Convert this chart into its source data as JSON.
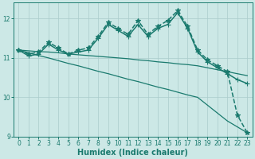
{
  "background_color": "#cce8e6",
  "grid_color": "#aacccc",
  "line_color": "#1a7a6e",
  "xlabel": "Humidex (Indice chaleur)",
  "xlim": [
    -0.5,
    23.5
  ],
  "ylim": [
    9.0,
    12.4
  ],
  "yticks": [
    9,
    10,
    11,
    12
  ],
  "xticks": [
    0,
    1,
    2,
    3,
    4,
    5,
    6,
    7,
    8,
    9,
    10,
    11,
    12,
    13,
    14,
    15,
    16,
    17,
    18,
    19,
    20,
    21,
    22,
    23
  ],
  "series": [
    {
      "x": [
        0,
        1,
        2,
        3,
        4,
        5,
        6,
        7,
        8,
        9,
        10,
        11,
        12,
        13,
        14,
        15,
        16,
        17,
        18,
        19,
        20,
        21,
        22,
        23
      ],
      "y": [
        11.2,
        11.13,
        11.06,
        11.0,
        10.93,
        10.86,
        10.8,
        10.73,
        10.66,
        10.6,
        10.53,
        10.46,
        10.4,
        10.33,
        10.26,
        10.2,
        10.13,
        10.06,
        10.0,
        9.8,
        9.6,
        9.4,
        9.25,
        9.1
      ],
      "marker": null,
      "linewidth": 0.9,
      "linestyle": "-",
      "markersize": 3
    },
    {
      "x": [
        0,
        1,
        2,
        3,
        4,
        5,
        6,
        7,
        8,
        9,
        10,
        11,
        12,
        13,
        14,
        15,
        16,
        17,
        18,
        19,
        20,
        21,
        22,
        23
      ],
      "y": [
        11.2,
        11.18,
        11.16,
        11.15,
        11.13,
        11.1,
        11.08,
        11.06,
        11.04,
        11.02,
        11.0,
        10.98,
        10.95,
        10.93,
        10.9,
        10.88,
        10.85,
        10.83,
        10.8,
        10.75,
        10.7,
        10.65,
        10.6,
        10.55
      ],
      "marker": null,
      "linewidth": 0.9,
      "linestyle": "-",
      "markersize": 3
    },
    {
      "x": [
        0,
        1,
        2,
        3,
        4,
        5,
        6,
        7,
        8,
        9,
        10,
        11,
        12,
        13,
        14,
        15,
        16,
        17,
        18,
        19,
        20,
        21,
        22,
        23
      ],
      "y": [
        11.2,
        11.05,
        11.1,
        11.35,
        11.2,
        11.1,
        11.15,
        11.2,
        11.5,
        11.85,
        11.7,
        11.55,
        11.85,
        11.55,
        11.75,
        11.85,
        12.15,
        11.75,
        11.15,
        10.9,
        10.75,
        10.6,
        10.45,
        10.35
      ],
      "marker": "+",
      "linewidth": 1.1,
      "linestyle": "-",
      "markersize": 4
    },
    {
      "x": [
        0,
        1,
        2,
        3,
        4,
        5,
        6,
        7,
        8,
        9,
        10,
        11,
        12,
        13,
        14,
        15,
        16,
        17,
        18,
        19,
        20,
        21,
        22,
        23
      ],
      "y": [
        11.2,
        11.1,
        11.15,
        11.4,
        11.25,
        11.1,
        11.2,
        11.25,
        11.55,
        11.9,
        11.75,
        11.6,
        11.95,
        11.6,
        11.8,
        11.95,
        12.2,
        11.8,
        11.2,
        10.95,
        10.8,
        10.65,
        9.55,
        9.1
      ],
      "marker": "*",
      "linewidth": 1.1,
      "linestyle": "--",
      "markersize": 4
    }
  ]
}
